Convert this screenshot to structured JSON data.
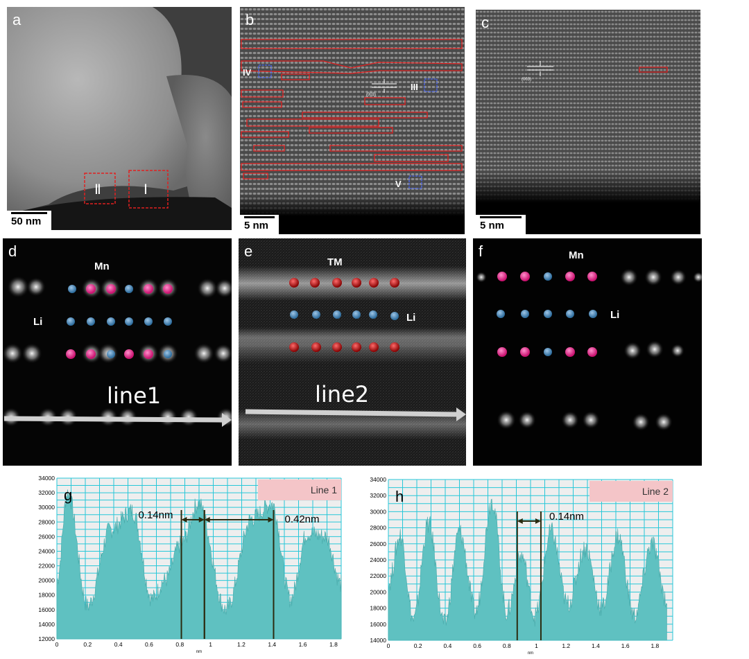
{
  "panels": {
    "a": {
      "label": "a",
      "scale": "50 nm",
      "roi": [
        "Ⅱ",
        "Ⅰ"
      ]
    },
    "b": {
      "label": "b",
      "scale": "5 nm",
      "boxes": [
        "IV",
        "III",
        "V"
      ],
      "plane": "(003)"
    },
    "c": {
      "label": "c",
      "scale": "5 nm",
      "plane": "(003)"
    },
    "d": {
      "label": "d",
      "atoms": [
        "Mn",
        "Li"
      ],
      "line": "line1"
    },
    "e": {
      "label": "e",
      "atoms": [
        "TM",
        "Li"
      ],
      "line": "line2"
    },
    "f": {
      "label": "f",
      "atoms": [
        "Mn",
        "Li"
      ]
    }
  },
  "colors": {
    "mn": "#e0177f",
    "li": "#3b7fb3",
    "tm": "#b01010",
    "trace": "#5fc1c1",
    "grid": "#27c7d8",
    "legend": "#f4c5c8"
  },
  "chart_data": [
    {
      "type": "area",
      "label": "g",
      "legend": "Line 1",
      "xlabel": "nm",
      "xlim": [
        0,
        1.85
      ],
      "ylim": [
        12000,
        34000
      ],
      "xticks": [
        "0",
        "0.2",
        "0.4",
        "0.6",
        "0.8",
        "1",
        "1.2",
        "1.4",
        "1.6",
        "1.8"
      ],
      "yticks": [
        "12000",
        "14000",
        "16000",
        "18000",
        "20000",
        "22000",
        "24000",
        "26000",
        "28000",
        "30000",
        "32000",
        "34000"
      ],
      "x": [
        0,
        0.07,
        0.2,
        0.35,
        0.49,
        0.62,
        0.7,
        0.81,
        0.92,
        1.1,
        1.27,
        1.4,
        1.52,
        1.63,
        1.75,
        1.85
      ],
      "y": [
        20000,
        32000,
        16500,
        27000,
        29500,
        17500,
        20000,
        25000,
        30500,
        16000,
        28500,
        30500,
        17500,
        26500,
        26000,
        19500
      ],
      "annotations": [
        {
          "text": "0.14nm",
          "from": 0.81,
          "to": 0.96
        },
        {
          "text": "0.42nm",
          "from": 0.96,
          "to": 1.41
        }
      ]
    },
    {
      "type": "area",
      "label": "h",
      "legend": "Line 2",
      "xlabel": "nm",
      "xlim": [
        0,
        1.92
      ],
      "ylim": [
        14000,
        34000
      ],
      "xticks": [
        "0",
        "0.2",
        "0.4",
        "0.6",
        "0.8",
        "1",
        "1.2",
        "1.4",
        "1.6",
        "1.8"
      ],
      "yticks": [
        "14000",
        "16000",
        "18000",
        "20000",
        "22000",
        "24000",
        "26000",
        "28000",
        "30000",
        "32000",
        "34000"
      ],
      "x": [
        0,
        0.08,
        0.17,
        0.27,
        0.38,
        0.48,
        0.59,
        0.7,
        0.8,
        0.9,
        0.99,
        1.1,
        1.21,
        1.33,
        1.44,
        1.55,
        1.66,
        1.78,
        1.88
      ],
      "y": [
        21000,
        27000,
        16500,
        28500,
        16000,
        27500,
        17500,
        31500,
        17500,
        24500,
        17000,
        27500,
        18500,
        25500,
        18000,
        27000,
        17000,
        26000,
        19000
      ],
      "annotations": [
        {
          "text": "0.14nm",
          "from": 0.87,
          "to": 1.03
        }
      ]
    }
  ]
}
